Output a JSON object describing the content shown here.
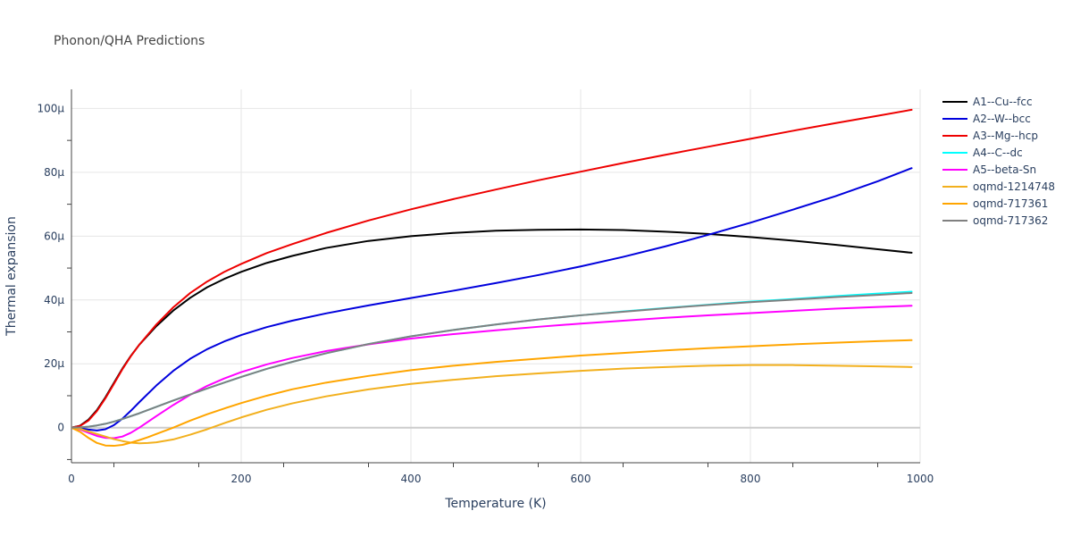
{
  "chart_data": {
    "type": "line",
    "title": "Phonon/QHA Predictions",
    "xlabel": "Temperature (K)",
    "ylabel": "Thermal expansion",
    "xlim": [
      0,
      1000
    ],
    "ylim": [
      -11,
      106
    ],
    "x_ticks": [
      0,
      200,
      400,
      600,
      800,
      1000
    ],
    "x_tick_labels": [
      "0",
      "200",
      "400",
      "600",
      "800",
      "1000"
    ],
    "y_ticks": [
      0,
      20,
      40,
      60,
      80,
      100
    ],
    "y_tick_labels": [
      "0",
      "20μ",
      "40μ",
      "60μ",
      "80μ",
      "100μ"
    ],
    "grid": true,
    "legend_position": "top-right",
    "series": [
      {
        "name": "A1--Cu--fcc",
        "color": "#000000",
        "x": [
          0,
          10,
          20,
          30,
          40,
          50,
          60,
          70,
          80,
          100,
          120,
          140,
          160,
          180,
          200,
          230,
          260,
          300,
          350,
          400,
          450,
          500,
          550,
          600,
          650,
          700,
          750,
          800,
          850,
          900,
          950,
          990
        ],
        "y": [
          0,
          0.6,
          2.5,
          5.5,
          9.5,
          14,
          18.5,
          22.5,
          26,
          31.8,
          36.7,
          40.7,
          44,
          46.6,
          48.8,
          51.6,
          53.8,
          56.3,
          58.5,
          60,
          61,
          61.7,
          62,
          62.1,
          61.9,
          61.4,
          60.7,
          59.7,
          58.6,
          57.3,
          55.9,
          54.8
        ]
      },
      {
        "name": "A2--W--bcc",
        "color": "#0000dd",
        "x": [
          0,
          10,
          20,
          30,
          40,
          50,
          60,
          70,
          80,
          100,
          120,
          140,
          160,
          180,
          200,
          230,
          260,
          300,
          350,
          400,
          450,
          500,
          550,
          600,
          650,
          700,
          750,
          800,
          850,
          900,
          950,
          990
        ],
        "y": [
          0,
          -0.2,
          -0.6,
          -0.9,
          -0.5,
          0.8,
          2.8,
          5.3,
          8,
          13.2,
          17.8,
          21.6,
          24.6,
          27,
          29,
          31.5,
          33.5,
          35.8,
          38.3,
          40.6,
          42.9,
          45.3,
          47.8,
          50.5,
          53.5,
          56.8,
          60.4,
          64.2,
          68.3,
          72.5,
          77.2,
          81.3
        ]
      },
      {
        "name": "A3--Mg--hcp",
        "color": "#ee0000",
        "x": [
          0,
          10,
          20,
          30,
          40,
          50,
          60,
          70,
          80,
          100,
          120,
          140,
          160,
          180,
          200,
          230,
          260,
          300,
          350,
          400,
          450,
          500,
          550,
          600,
          650,
          700,
          750,
          800,
          850,
          900,
          950,
          990
        ],
        "y": [
          0,
          0.5,
          2.2,
          5.2,
          9.2,
          13.7,
          18.3,
          22.4,
          26,
          32.3,
          37.7,
          42.2,
          45.8,
          48.8,
          51.3,
          54.7,
          57.5,
          61,
          64.9,
          68.4,
          71.6,
          74.6,
          77.5,
          80.2,
          82.9,
          85.5,
          88,
          90.5,
          93,
          95.4,
          97.7,
          99.6
        ]
      },
      {
        "name": "A4--C--dc",
        "color": "#00ffff",
        "x": [
          0,
          10,
          20,
          30,
          40,
          50,
          60,
          80,
          100,
          120,
          140,
          160,
          180,
          200,
          230,
          260,
          300,
          350,
          400,
          450,
          500,
          550,
          600,
          650,
          700,
          750,
          800,
          850,
          900,
          950,
          990
        ],
        "y": [
          0,
          0.1,
          0.3,
          0.7,
          1.2,
          1.9,
          2.7,
          4.5,
          6.5,
          8.5,
          10.4,
          12.3,
          14.1,
          15.9,
          18.4,
          20.6,
          23.3,
          26.2,
          28.6,
          30.6,
          32.3,
          33.9,
          35.2,
          36.4,
          37.5,
          38.5,
          39.5,
          40.3,
          41.2,
          42,
          42.6
        ]
      },
      {
        "name": "A5--beta-Sn",
        "color": "#ff00ff",
        "x": [
          0,
          10,
          20,
          30,
          40,
          50,
          60,
          70,
          80,
          100,
          120,
          140,
          160,
          180,
          200,
          230,
          260,
          300,
          350,
          400,
          450,
          500,
          550,
          600,
          650,
          700,
          750,
          800,
          850,
          900,
          950,
          990
        ],
        "y": [
          0,
          -0.6,
          -1.6,
          -2.6,
          -3.2,
          -3.3,
          -2.8,
          -1.6,
          0,
          3.6,
          7.1,
          10.3,
          13.1,
          15.4,
          17.4,
          19.8,
          21.8,
          24,
          26.1,
          27.9,
          29.3,
          30.5,
          31.6,
          32.6,
          33.5,
          34.4,
          35.2,
          35.9,
          36.6,
          37.3,
          37.8,
          38.2
        ]
      },
      {
        "name": "oqmd-1214748",
        "color": "#f2b01e",
        "x": [
          0,
          10,
          20,
          30,
          40,
          50,
          60,
          70,
          80,
          90,
          100,
          120,
          140,
          160,
          180,
          200,
          230,
          260,
          300,
          350,
          400,
          450,
          500,
          550,
          600,
          650,
          700,
          750,
          800,
          850,
          900,
          950,
          990
        ],
        "y": [
          0,
          -0.4,
          -1.2,
          -2,
          -2.8,
          -3.6,
          -4.2,
          -4.7,
          -4.9,
          -4.8,
          -4.6,
          -3.7,
          -2.2,
          -0.5,
          1.4,
          3.2,
          5.6,
          7.6,
          9.8,
          12,
          13.7,
          15,
          16.1,
          17,
          17.8,
          18.5,
          19,
          19.4,
          19.6,
          19.6,
          19.4,
          19.2,
          19
        ]
      },
      {
        "name": "oqmd-717361",
        "color": "#ffa500",
        "x": [
          0,
          10,
          20,
          30,
          40,
          50,
          60,
          70,
          80,
          90,
          100,
          120,
          140,
          160,
          180,
          200,
          230,
          260,
          300,
          350,
          400,
          450,
          500,
          550,
          600,
          650,
          700,
          750,
          800,
          850,
          900,
          950,
          990
        ],
        "y": [
          0,
          -1.3,
          -3.2,
          -4.8,
          -5.6,
          -5.7,
          -5.4,
          -4.7,
          -3.9,
          -3,
          -2,
          0,
          2.2,
          4.2,
          6,
          7.7,
          10,
          12,
          14.1,
          16.2,
          18,
          19.4,
          20.6,
          21.6,
          22.6,
          23.4,
          24.2,
          24.9,
          25.5,
          26.1,
          26.6,
          27.1,
          27.4
        ]
      },
      {
        "name": "oqmd-717362",
        "color": "#808080",
        "x": [
          0,
          10,
          20,
          30,
          40,
          50,
          60,
          80,
          100,
          120,
          140,
          160,
          180,
          200,
          230,
          260,
          300,
          350,
          400,
          450,
          500,
          550,
          600,
          650,
          700,
          750,
          800,
          850,
          900,
          950,
          990
        ],
        "y": [
          0,
          0.1,
          0.3,
          0.7,
          1.2,
          1.9,
          2.7,
          4.5,
          6.5,
          8.5,
          10.4,
          12.3,
          14.1,
          15.9,
          18.4,
          20.6,
          23.3,
          26.2,
          28.6,
          30.6,
          32.3,
          33.9,
          35.2,
          36.3,
          37.4,
          38.4,
          39.3,
          40.1,
          40.9,
          41.6,
          42.2
        ]
      }
    ]
  }
}
